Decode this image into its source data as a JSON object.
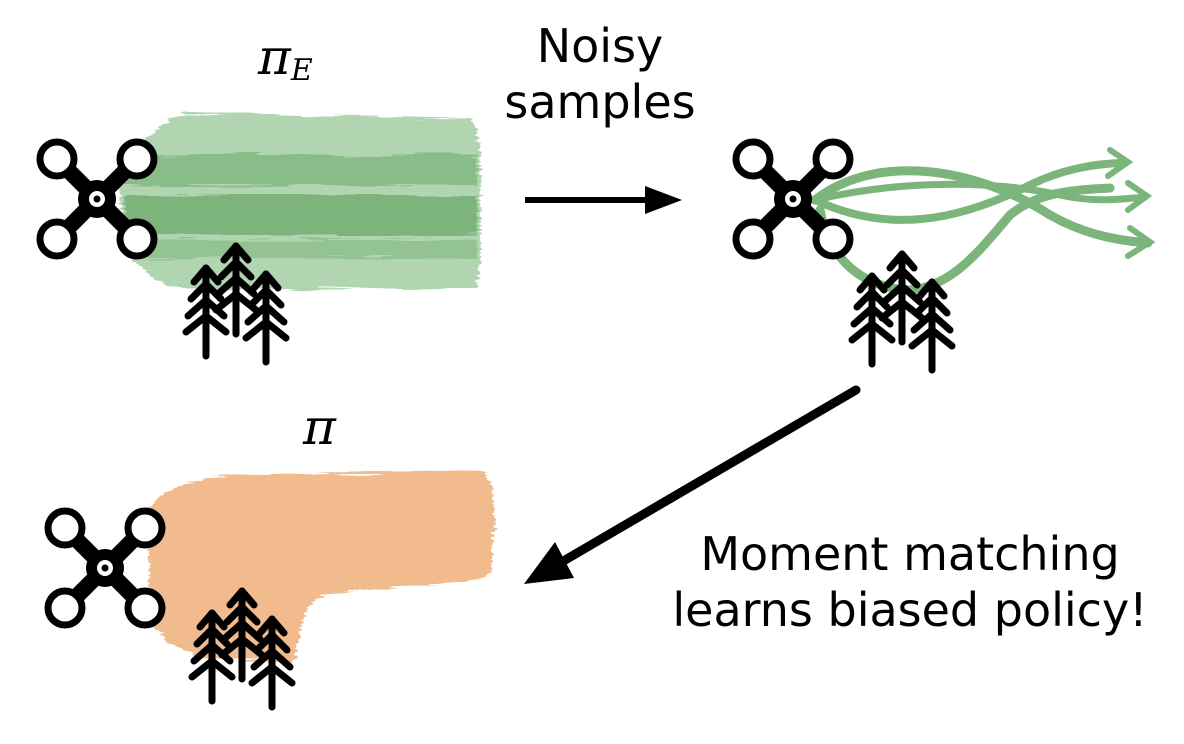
{
  "labels": {
    "expert_policy_symbol": "π",
    "expert_policy_subscript": "E",
    "learned_policy_symbol": "π",
    "noisy_line1": "Noisy",
    "noisy_line2": "samples",
    "result_line1": "Moment matching",
    "result_line2": "learns biased policy!"
  },
  "icons": {
    "vehicle": "drone-icon",
    "obstacle": "trees-icon"
  },
  "colors": {
    "expert": "#4f9d4f",
    "learned": "#f0b482",
    "ink": "#000000"
  }
}
